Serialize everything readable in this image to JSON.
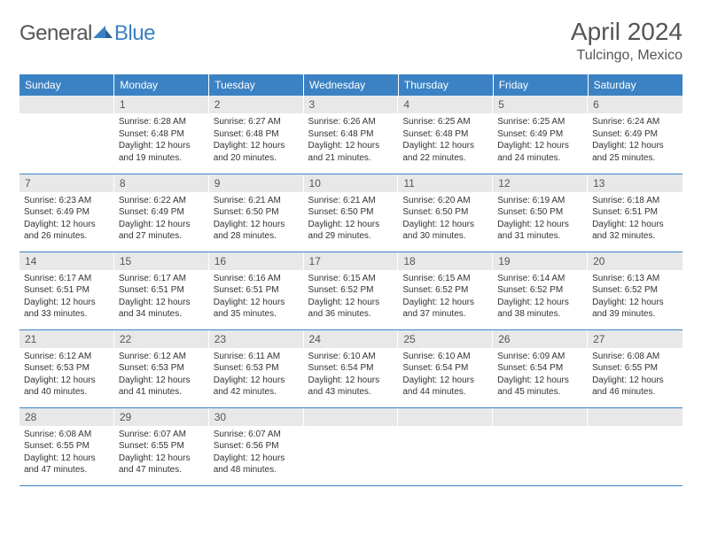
{
  "brand": {
    "part1": "General",
    "part2": "Blue"
  },
  "title": "April 2024",
  "location": "Tulcingo, Mexico",
  "colors": {
    "header_bg": "#3b82c4",
    "header_text": "#ffffff",
    "daynum_bg": "#e8e8e8",
    "text": "#333333",
    "title_text": "#555555",
    "border": "#3b82c4"
  },
  "weekdays": [
    "Sunday",
    "Monday",
    "Tuesday",
    "Wednesday",
    "Thursday",
    "Friday",
    "Saturday"
  ],
  "weeks": [
    [
      null,
      {
        "n": "1",
        "sr": "Sunrise: 6:28 AM",
        "ss": "Sunset: 6:48 PM",
        "dl": "Daylight: 12 hours and 19 minutes."
      },
      {
        "n": "2",
        "sr": "Sunrise: 6:27 AM",
        "ss": "Sunset: 6:48 PM",
        "dl": "Daylight: 12 hours and 20 minutes."
      },
      {
        "n": "3",
        "sr": "Sunrise: 6:26 AM",
        "ss": "Sunset: 6:48 PM",
        "dl": "Daylight: 12 hours and 21 minutes."
      },
      {
        "n": "4",
        "sr": "Sunrise: 6:25 AM",
        "ss": "Sunset: 6:48 PM",
        "dl": "Daylight: 12 hours and 22 minutes."
      },
      {
        "n": "5",
        "sr": "Sunrise: 6:25 AM",
        "ss": "Sunset: 6:49 PM",
        "dl": "Daylight: 12 hours and 24 minutes."
      },
      {
        "n": "6",
        "sr": "Sunrise: 6:24 AM",
        "ss": "Sunset: 6:49 PM",
        "dl": "Daylight: 12 hours and 25 minutes."
      }
    ],
    [
      {
        "n": "7",
        "sr": "Sunrise: 6:23 AM",
        "ss": "Sunset: 6:49 PM",
        "dl": "Daylight: 12 hours and 26 minutes."
      },
      {
        "n": "8",
        "sr": "Sunrise: 6:22 AM",
        "ss": "Sunset: 6:49 PM",
        "dl": "Daylight: 12 hours and 27 minutes."
      },
      {
        "n": "9",
        "sr": "Sunrise: 6:21 AM",
        "ss": "Sunset: 6:50 PM",
        "dl": "Daylight: 12 hours and 28 minutes."
      },
      {
        "n": "10",
        "sr": "Sunrise: 6:21 AM",
        "ss": "Sunset: 6:50 PM",
        "dl": "Daylight: 12 hours and 29 minutes."
      },
      {
        "n": "11",
        "sr": "Sunrise: 6:20 AM",
        "ss": "Sunset: 6:50 PM",
        "dl": "Daylight: 12 hours and 30 minutes."
      },
      {
        "n": "12",
        "sr": "Sunrise: 6:19 AM",
        "ss": "Sunset: 6:50 PM",
        "dl": "Daylight: 12 hours and 31 minutes."
      },
      {
        "n": "13",
        "sr": "Sunrise: 6:18 AM",
        "ss": "Sunset: 6:51 PM",
        "dl": "Daylight: 12 hours and 32 minutes."
      }
    ],
    [
      {
        "n": "14",
        "sr": "Sunrise: 6:17 AM",
        "ss": "Sunset: 6:51 PM",
        "dl": "Daylight: 12 hours and 33 minutes."
      },
      {
        "n": "15",
        "sr": "Sunrise: 6:17 AM",
        "ss": "Sunset: 6:51 PM",
        "dl": "Daylight: 12 hours and 34 minutes."
      },
      {
        "n": "16",
        "sr": "Sunrise: 6:16 AM",
        "ss": "Sunset: 6:51 PM",
        "dl": "Daylight: 12 hours and 35 minutes."
      },
      {
        "n": "17",
        "sr": "Sunrise: 6:15 AM",
        "ss": "Sunset: 6:52 PM",
        "dl": "Daylight: 12 hours and 36 minutes."
      },
      {
        "n": "18",
        "sr": "Sunrise: 6:15 AM",
        "ss": "Sunset: 6:52 PM",
        "dl": "Daylight: 12 hours and 37 minutes."
      },
      {
        "n": "19",
        "sr": "Sunrise: 6:14 AM",
        "ss": "Sunset: 6:52 PM",
        "dl": "Daylight: 12 hours and 38 minutes."
      },
      {
        "n": "20",
        "sr": "Sunrise: 6:13 AM",
        "ss": "Sunset: 6:52 PM",
        "dl": "Daylight: 12 hours and 39 minutes."
      }
    ],
    [
      {
        "n": "21",
        "sr": "Sunrise: 6:12 AM",
        "ss": "Sunset: 6:53 PM",
        "dl": "Daylight: 12 hours and 40 minutes."
      },
      {
        "n": "22",
        "sr": "Sunrise: 6:12 AM",
        "ss": "Sunset: 6:53 PM",
        "dl": "Daylight: 12 hours and 41 minutes."
      },
      {
        "n": "23",
        "sr": "Sunrise: 6:11 AM",
        "ss": "Sunset: 6:53 PM",
        "dl": "Daylight: 12 hours and 42 minutes."
      },
      {
        "n": "24",
        "sr": "Sunrise: 6:10 AM",
        "ss": "Sunset: 6:54 PM",
        "dl": "Daylight: 12 hours and 43 minutes."
      },
      {
        "n": "25",
        "sr": "Sunrise: 6:10 AM",
        "ss": "Sunset: 6:54 PM",
        "dl": "Daylight: 12 hours and 44 minutes."
      },
      {
        "n": "26",
        "sr": "Sunrise: 6:09 AM",
        "ss": "Sunset: 6:54 PM",
        "dl": "Daylight: 12 hours and 45 minutes."
      },
      {
        "n": "27",
        "sr": "Sunrise: 6:08 AM",
        "ss": "Sunset: 6:55 PM",
        "dl": "Daylight: 12 hours and 46 minutes."
      }
    ],
    [
      {
        "n": "28",
        "sr": "Sunrise: 6:08 AM",
        "ss": "Sunset: 6:55 PM",
        "dl": "Daylight: 12 hours and 47 minutes."
      },
      {
        "n": "29",
        "sr": "Sunrise: 6:07 AM",
        "ss": "Sunset: 6:55 PM",
        "dl": "Daylight: 12 hours and 47 minutes."
      },
      {
        "n": "30",
        "sr": "Sunrise: 6:07 AM",
        "ss": "Sunset: 6:56 PM",
        "dl": "Daylight: 12 hours and 48 minutes."
      },
      null,
      null,
      null,
      null
    ]
  ]
}
